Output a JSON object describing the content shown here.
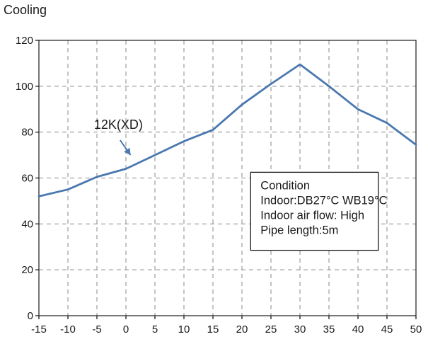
{
  "chart_data": {
    "type": "line",
    "title": "Cooling",
    "xlabel": "",
    "ylabel": "",
    "xlim": [
      -15,
      50
    ],
    "ylim": [
      0,
      120
    ],
    "x_ticks": [
      -15,
      -10,
      -5,
      0,
      5,
      10,
      15,
      20,
      25,
      30,
      35,
      40,
      45,
      50
    ],
    "y_ticks": [
      0,
      20,
      40,
      60,
      80,
      100,
      120
    ],
    "grid": true,
    "series": [
      {
        "name": "12K(XD)",
        "color": "#4a78b0",
        "x": [
          -15,
          -10,
          -5,
          0,
          5,
          10,
          15,
          20,
          25,
          30,
          35,
          40,
          45,
          50
        ],
        "y": [
          52,
          55,
          60.5,
          64,
          70,
          76,
          81,
          92,
          101,
          109.5,
          100,
          90,
          84,
          74.5
        ]
      }
    ],
    "annotation": {
      "lines": [
        "Condition",
        "Indoor:DB27°C WB19°C",
        "Indoor air flow: High",
        "Pipe length:5m"
      ],
      "placement": "center-right"
    }
  }
}
